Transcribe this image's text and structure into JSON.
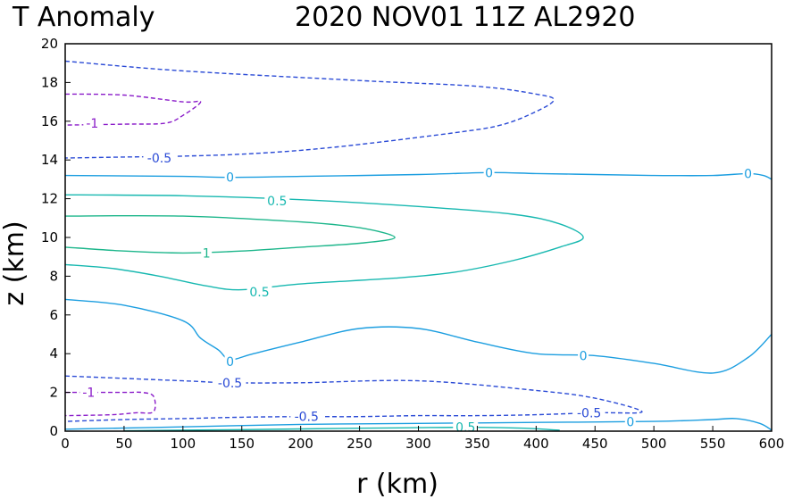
{
  "chart_data": {
    "type": "contour",
    "title_left": "T Anomaly",
    "title_right": "2020 NOV01 11Z   AL2920",
    "xlabel": "r (km)",
    "ylabel": "z (km)",
    "xlim": [
      0,
      600
    ],
    "ylim": [
      0,
      20
    ],
    "xticks": [
      "0",
      "50",
      "100",
      "150",
      "200",
      "250",
      "300",
      "350",
      "400",
      "450",
      "500",
      "550",
      "600"
    ],
    "yticks": [
      "0",
      "2",
      "4",
      "6",
      "8",
      "10",
      "12",
      "14",
      "16",
      "18",
      "20"
    ],
    "contours": [
      {
        "level": -0.5,
        "color": "#2b4bd6",
        "dashed": true,
        "points": [
          [
            0,
            19.1
          ],
          [
            100,
            18.6
          ],
          [
            250,
            18.1
          ],
          [
            350,
            17.8
          ],
          [
            400,
            17.4
          ],
          [
            415,
            17.1
          ],
          [
            400,
            16.5
          ],
          [
            370,
            15.8
          ],
          [
            330,
            15.4
          ],
          [
            250,
            14.8
          ],
          [
            200,
            14.5
          ],
          [
            150,
            14.3
          ],
          [
            100,
            14.2
          ],
          [
            50,
            14.15
          ],
          [
            0,
            14.1
          ]
        ]
      },
      {
        "level": -1,
        "color": "#8a1bc9",
        "dashed": true,
        "points": [
          [
            0,
            17.4
          ],
          [
            50,
            17.35
          ],
          [
            100,
            17.0
          ],
          [
            115,
            17.0
          ],
          [
            100,
            16.3
          ],
          [
            85,
            15.9
          ],
          [
            50,
            15.85
          ],
          [
            0,
            15.8
          ]
        ]
      },
      {
        "level": 0,
        "color": "#1c9ee0",
        "dashed": false,
        "points": [
          [
            0,
            13.2
          ],
          [
            100,
            13.15
          ],
          [
            140,
            13.1
          ],
          [
            200,
            13.15
          ],
          [
            300,
            13.25
          ],
          [
            360,
            13.35
          ],
          [
            400,
            13.3
          ],
          [
            450,
            13.25
          ],
          [
            500,
            13.2
          ],
          [
            550,
            13.2
          ],
          [
            580,
            13.3
          ],
          [
            593,
            13.2
          ],
          [
            600,
            13.0
          ]
        ]
      },
      {
        "level": 0.5,
        "color": "#17b8b0",
        "dashed": false,
        "points": [
          [
            0,
            12.2
          ],
          [
            100,
            12.15
          ],
          [
            200,
            11.95
          ],
          [
            300,
            11.6
          ],
          [
            380,
            11.2
          ],
          [
            420,
            10.7
          ],
          [
            440,
            10.0
          ],
          [
            420,
            9.5
          ],
          [
            380,
            8.8
          ],
          [
            330,
            8.2
          ],
          [
            280,
            7.9
          ],
          [
            200,
            7.6
          ],
          [
            150,
            7.3
          ],
          [
            120,
            7.5
          ],
          [
            80,
            8.0
          ],
          [
            40,
            8.4
          ],
          [
            0,
            8.6
          ]
        ]
      },
      {
        "level": 1,
        "color": "#1db68b",
        "dashed": false,
        "points": [
          [
            0,
            11.1
          ],
          [
            100,
            11.1
          ],
          [
            200,
            10.8
          ],
          [
            250,
            10.5
          ],
          [
            280,
            10.0
          ],
          [
            250,
            9.7
          ],
          [
            200,
            9.5
          ],
          [
            150,
            9.3
          ],
          [
            100,
            9.2
          ],
          [
            50,
            9.3
          ],
          [
            0,
            9.5
          ]
        ]
      },
      {
        "level": 0,
        "color": "#1c9ee0",
        "dashed": false,
        "points": [
          [
            0,
            6.8
          ],
          [
            50,
            6.5
          ],
          [
            100,
            5.7
          ],
          [
            115,
            4.8
          ],
          [
            130,
            4.2
          ],
          [
            140,
            3.7
          ],
          [
            160,
            4.0
          ],
          [
            200,
            4.6
          ],
          [
            250,
            5.3
          ],
          [
            300,
            5.3
          ],
          [
            350,
            4.6
          ],
          [
            400,
            4.0
          ],
          [
            450,
            3.9
          ],
          [
            500,
            3.5
          ],
          [
            550,
            3.0
          ],
          [
            580,
            3.8
          ],
          [
            600,
            5.0
          ]
        ]
      },
      {
        "level": -0.5,
        "color": "#2b4bd6",
        "dashed": true,
        "points": [
          [
            0,
            2.85
          ],
          [
            100,
            2.6
          ],
          [
            140,
            2.5
          ],
          [
            200,
            2.5
          ],
          [
            300,
            2.6
          ],
          [
            400,
            2.1
          ],
          [
            450,
            1.7
          ],
          [
            490,
            1.0
          ],
          [
            450,
            0.95
          ],
          [
            400,
            0.85
          ],
          [
            350,
            0.8
          ],
          [
            300,
            0.8
          ],
          [
            250,
            0.75
          ],
          [
            200,
            0.75
          ],
          [
            150,
            0.72
          ],
          [
            100,
            0.65
          ],
          [
            50,
            0.6
          ],
          [
            0,
            0.5
          ]
        ]
      },
      {
        "level": -1,
        "color": "#8a1bc9",
        "dashed": true,
        "points": [
          [
            0,
            2.0
          ],
          [
            50,
            2.0
          ],
          [
            65,
            2.0
          ],
          [
            75,
            1.8
          ],
          [
            75,
            1.0
          ],
          [
            60,
            0.95
          ],
          [
            40,
            0.85
          ],
          [
            0,
            0.8
          ]
        ]
      },
      {
        "level": 0,
        "color": "#1c9ee0",
        "dashed": false,
        "points": [
          [
            0,
            0.1
          ],
          [
            100,
            0.22
          ],
          [
            200,
            0.35
          ],
          [
            300,
            0.4
          ],
          [
            400,
            0.45
          ],
          [
            500,
            0.5
          ],
          [
            550,
            0.6
          ],
          [
            570,
            0.65
          ],
          [
            590,
            0.4
          ],
          [
            600,
            0.05
          ]
        ]
      },
      {
        "level": 0.5,
        "color": "#17b8b0",
        "dashed": false,
        "points": [
          [
            50,
            0.02
          ],
          [
            150,
            0.08
          ],
          [
            250,
            0.15
          ],
          [
            300,
            0.18
          ],
          [
            350,
            0.2
          ],
          [
            390,
            0.15
          ],
          [
            420,
            0.05
          ]
        ]
      }
    ],
    "contour_labels": [
      {
        "text": "-0.5",
        "x": 80,
        "y": 14.1,
        "color": "#2b4bd6"
      },
      {
        "text": "-1",
        "x": 23,
        "y": 15.9,
        "color": "#8a1bc9"
      },
      {
        "text": "0",
        "x": 140,
        "y": 13.1,
        "color": "#1c9ee0"
      },
      {
        "text": "0",
        "x": 360,
        "y": 13.35,
        "color": "#1c9ee0"
      },
      {
        "text": "0",
        "x": 580,
        "y": 13.3,
        "color": "#1c9ee0"
      },
      {
        "text": "0.5",
        "x": 180,
        "y": 11.9,
        "color": "#17b8b0"
      },
      {
        "text": "1",
        "x": 120,
        "y": 9.2,
        "color": "#1db68b"
      },
      {
        "text": "0.5",
        "x": 165,
        "y": 7.2,
        "color": "#17b8b0"
      },
      {
        "text": "0",
        "x": 140,
        "y": 3.6,
        "color": "#1c9ee0"
      },
      {
        "text": "0",
        "x": 440,
        "y": 3.9,
        "color": "#1c9ee0"
      },
      {
        "text": "-0.5",
        "x": 140,
        "y": 2.5,
        "color": "#2b4bd6"
      },
      {
        "text": "-1",
        "x": 20,
        "y": 2.0,
        "color": "#8a1bc9"
      },
      {
        "text": "-0.5",
        "x": 205,
        "y": 0.75,
        "color": "#2b4bd6"
      },
      {
        "text": "-0.5",
        "x": 445,
        "y": 0.95,
        "color": "#2b4bd6"
      },
      {
        "text": "0",
        "x": 480,
        "y": 0.48,
        "color": "#1c9ee0"
      },
      {
        "text": "0.5",
        "x": 340,
        "y": 0.2,
        "color": "#17b8b0"
      }
    ]
  }
}
